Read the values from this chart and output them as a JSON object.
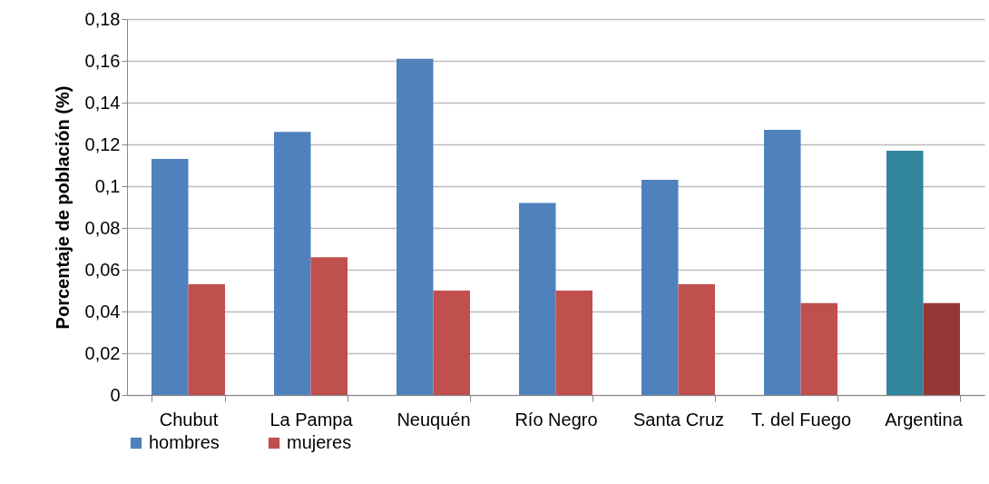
{
  "chart_data": {
    "type": "bar",
    "ylabel": "Porcentaje de población (%)",
    "categories": [
      "Chubut",
      "La Pampa",
      "Neuquén",
      "Río Negro",
      "Santa Cruz",
      "T. del Fuego",
      "Argentina"
    ],
    "series": [
      {
        "name": "hombres",
        "color": "#4f81bd",
        "colors": [
          "#4f81bd",
          "#4f81bd",
          "#4f81bd",
          "#4f81bd",
          "#4f81bd",
          "#4f81bd",
          "#31859c"
        ],
        "values": [
          0.113,
          0.126,
          0.161,
          0.092,
          0.103,
          0.127,
          0.117
        ]
      },
      {
        "name": "mujeres",
        "color": "#c0504d",
        "colors": [
          "#c0504d",
          "#c0504d",
          "#c0504d",
          "#c0504d",
          "#c0504d",
          "#c0504d",
          "#953735"
        ],
        "values": [
          0.053,
          0.066,
          0.05,
          0.05,
          0.053,
          0.044,
          0.044
        ]
      }
    ],
    "ylim": [
      0,
      0.18
    ],
    "yticks": [
      0,
      {
        "value": 0.02,
        "label": "0,02"
      },
      {
        "value": 0.04,
        "label": "0,04"
      },
      {
        "value": 0.06,
        "label": "0,06"
      },
      {
        "value": 0.08,
        "label": "0,08"
      },
      {
        "value": 0.1,
        "label": "0,1"
      },
      {
        "value": 0.12,
        "label": "0,12"
      },
      {
        "value": 0.14,
        "label": "0,14"
      },
      {
        "value": 0.16,
        "label": "0,16"
      },
      {
        "value": 0.18,
        "label": "0,18"
      }
    ],
    "grid": "y",
    "legend": "bottom"
  }
}
